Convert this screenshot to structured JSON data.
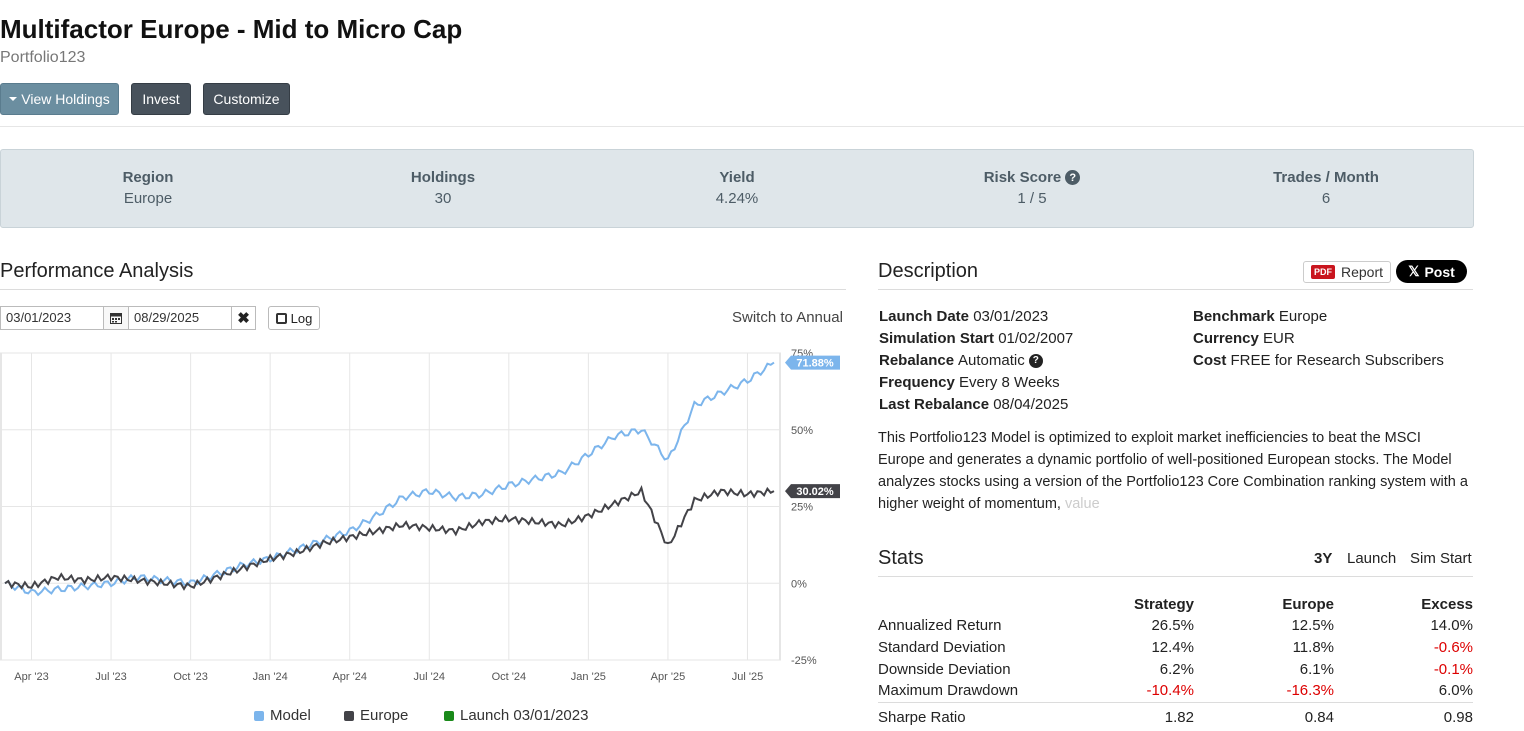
{
  "header": {
    "title": "Multifactor Europe - Mid to Micro Cap",
    "subtitle": "Portfolio123",
    "buttons": {
      "holdings": "View Holdings",
      "invest": "Invest",
      "customize": "Customize"
    }
  },
  "summary": {
    "items": [
      {
        "label": "Region",
        "value": "Europe"
      },
      {
        "label": "Holdings",
        "value": "30"
      },
      {
        "label": "Yield",
        "value": "4.24%"
      },
      {
        "label": "Risk Score",
        "value": "1 / 5"
      },
      {
        "label": "Trades / Month",
        "value": "6"
      }
    ]
  },
  "performance": {
    "title": "Performance Analysis",
    "start_date": "03/01/2023",
    "end_date": "08/29/2025",
    "log_label": "Log",
    "switch_label": "Switch to Annual",
    "legend": [
      {
        "label": "Model",
        "color": "#7cb5ec"
      },
      {
        "label": "Europe",
        "color": "#434348"
      },
      {
        "label": "Launch 03/01/2023",
        "color": "#1a8a1a"
      }
    ]
  },
  "chart_data": {
    "type": "line",
    "x": [
      "Mar '23",
      "Apr '23",
      "May '23",
      "Jun '23",
      "Jul '23",
      "Aug '23",
      "Sep '23",
      "Oct '23",
      "Nov '23",
      "Dec '23",
      "Jan '24",
      "Feb '24",
      "Mar '24",
      "Apr '24",
      "May '24",
      "Jun '24",
      "Jul '24",
      "Aug '24",
      "Sep '24",
      "Oct '24",
      "Nov '24",
      "Dec '24",
      "Jan '25",
      "Feb '25",
      "Mar '25",
      "Apr '25",
      "May '25",
      "Jun '25",
      "Jul '25",
      "Aug '25"
    ],
    "series": [
      {
        "name": "Model",
        "color": "#7cb5ec",
        "last_label": "71.88%",
        "values": [
          0,
          -3,
          -2,
          -1,
          0,
          2,
          1,
          0,
          3,
          6,
          8,
          11,
          14,
          17,
          22,
          28,
          30,
          28,
          29,
          32,
          34,
          36,
          42,
          48,
          50,
          40,
          58,
          62,
          66,
          71.88
        ]
      },
      {
        "name": "Europe",
        "color": "#434348",
        "last_label": "30.02%",
        "values": [
          0,
          -1,
          2,
          1,
          2,
          1,
          0,
          -1,
          2,
          5,
          8,
          10,
          13,
          15,
          17,
          19,
          18,
          17,
          20,
          21,
          20,
          19,
          22,
          26,
          30,
          12,
          27,
          30,
          29,
          30.02
        ]
      }
    ],
    "xticks": [
      "Apr '23",
      "Jul '23",
      "Oct '23",
      "Jan '24",
      "Apr '24",
      "Jul '24",
      "Oct '24",
      "Jan '25",
      "Apr '25",
      "Jul '25"
    ],
    "yticks": [
      "75%",
      "50%",
      "25%",
      "0%",
      "-25%"
    ],
    "ylim": [
      -25,
      75
    ],
    "grid": true,
    "legend_position": "bottom"
  },
  "description": {
    "title": "Description",
    "pdf_tag": "PDF",
    "report_label": "Report",
    "x_logo": "𝕏",
    "post_label": "Post",
    "left": [
      {
        "label": "Launch Date",
        "value": "03/01/2023"
      },
      {
        "label": "Simulation Start",
        "value": "01/02/2007"
      },
      {
        "label": "Rebalance",
        "value": "Automatic"
      },
      {
        "label": "Frequency",
        "value": "Every 8 Weeks"
      },
      {
        "label": "Last Rebalance",
        "value": "08/04/2025"
      }
    ],
    "right": [
      {
        "label": "Benchmark",
        "value": "Europe"
      },
      {
        "label": "Currency",
        "value": "EUR"
      },
      {
        "label": "Cost",
        "value": "FREE for Research Subscribers"
      }
    ],
    "text": "This Portfolio123 Model is optimized to exploit market inefficiencies to beat the MSCI Europe and generates a dynamic portfolio of well-positioned European stocks. The Model analyzes stocks using a version of the Portfolio123 Core Combination ranking system with a higher weight of momentum,",
    "text_faded": "value"
  },
  "stats": {
    "title": "Stats",
    "tabs": [
      "3Y",
      "Launch",
      "Sim Start"
    ],
    "headers": [
      "",
      "Strategy",
      "Europe",
      "Excess"
    ],
    "rows": [
      [
        "Annualized Return",
        "26.5%",
        "12.5%",
        "14.0%"
      ],
      [
        "Standard Deviation",
        "12.4%",
        "11.8%",
        "-0.6%"
      ],
      [
        "Downside Deviation",
        "6.2%",
        "6.1%",
        "-0.1%"
      ],
      [
        "Maximum Drawdown",
        "-10.4%",
        "-16.3%",
        "6.0%"
      ],
      [
        "Sharpe Ratio",
        "1.82",
        "0.84",
        "0.98"
      ]
    ]
  }
}
